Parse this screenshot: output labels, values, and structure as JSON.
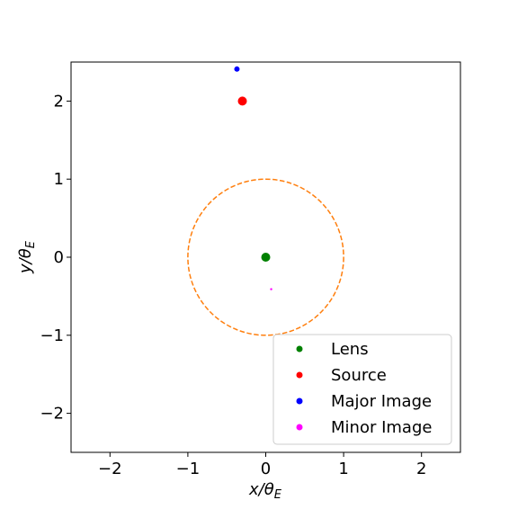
{
  "chart_data": {
    "type": "scatter",
    "xlim": [
      -2.5,
      2.5
    ],
    "ylim": [
      -2.5,
      2.5
    ],
    "xticks": [
      -2,
      -1,
      0,
      1,
      2
    ],
    "yticks": [
      -2,
      -1,
      0,
      1,
      2
    ],
    "xtick_labels": [
      "−2",
      "−1",
      "0",
      "1",
      "2"
    ],
    "ytick_labels": [
      "−2",
      "−1",
      "0",
      "1",
      "2"
    ],
    "xlabel": "x/θ",
    "xlabel_sub": "E",
    "ylabel": "y/θ",
    "ylabel_sub": "E",
    "grid": false,
    "legend_position": "lower right",
    "series": [
      {
        "name": "Lens",
        "color": "#008000",
        "x": [
          0.0
        ],
        "y": [
          0.0
        ],
        "marker_size": "large"
      },
      {
        "name": "Source",
        "color": "#ff0000",
        "x": [
          -0.3
        ],
        "y": [
          2.0
        ],
        "marker_size": "large"
      },
      {
        "name": "Major Image",
        "color": "#0000ff",
        "x": [
          -0.37
        ],
        "y": [
          2.41
        ],
        "marker_size": "medium"
      },
      {
        "name": "Minor Image",
        "color": "#ff00ff",
        "x": [
          0.07
        ],
        "y": [
          -0.41
        ],
        "marker_size": "small"
      }
    ],
    "circle": {
      "center": [
        0,
        0
      ],
      "radius": 1.0,
      "color": "#ff7f0e",
      "style": "dashed"
    }
  }
}
